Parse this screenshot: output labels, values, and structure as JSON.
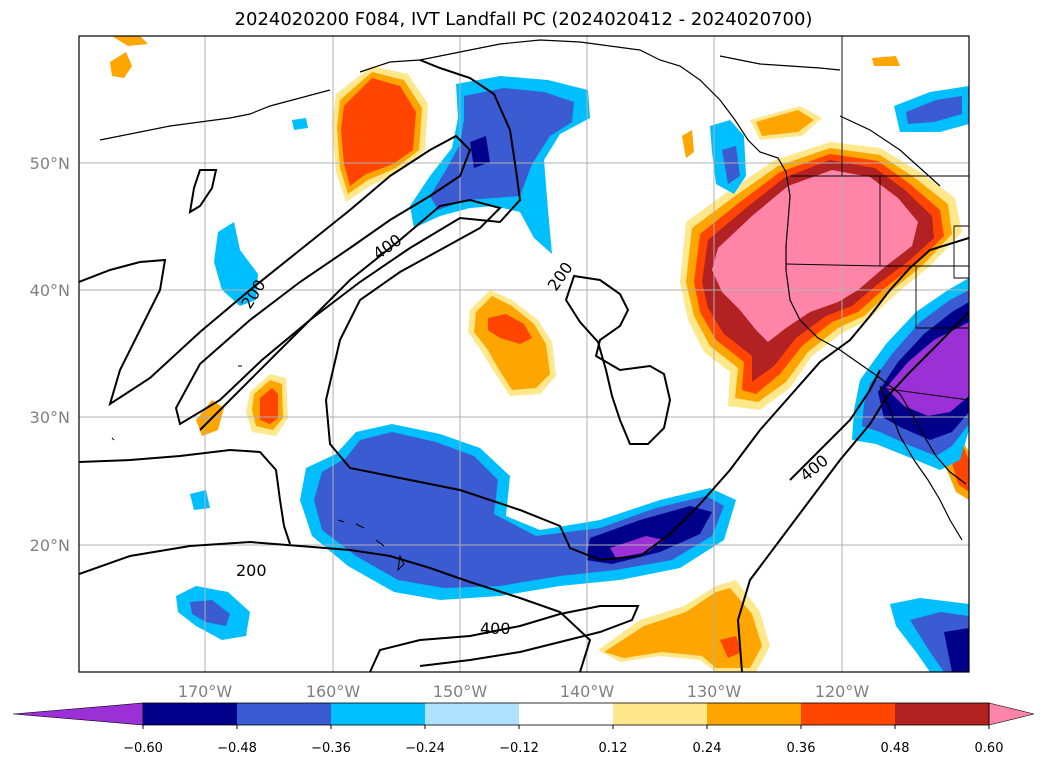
{
  "title": "2024020200 F084, IVT Landfall PC (2024020412 - 2024020700)",
  "lat_labels": [
    "50°N",
    "40°N",
    "30°N",
    "20°N"
  ],
  "lon_labels": [
    "170°W",
    "160°W",
    "150°W",
    "140°W",
    "130°W",
    "120°W"
  ],
  "contour_labels": [
    "200",
    "400",
    "200",
    "200",
    "400",
    "200",
    "400"
  ],
  "colorbar": {
    "ticks": [
      "−0.60",
      "−0.48",
      "−0.36",
      "−0.24",
      "−0.12",
      "0.12",
      "0.24",
      "0.36",
      "0.48",
      "0.60"
    ],
    "colors": [
      "#9b30d6",
      "#00008b",
      "#3a5bd1",
      "#00bfff",
      "#b0e2ff",
      "#ffffff",
      "#ffe88c",
      "#ffa500",
      "#ff4500",
      "#b22222",
      "#ff85a8"
    ]
  }
}
